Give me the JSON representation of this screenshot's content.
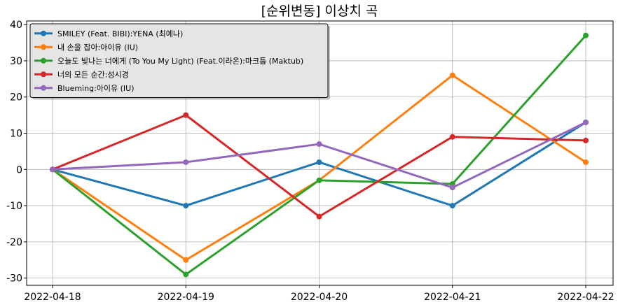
{
  "chart_data": {
    "type": "line",
    "title": "[순위변동] 이상치 곡",
    "xlabel": "",
    "ylabel": "",
    "x": [
      "2022-04-18",
      "2022-04-19",
      "2022-04-20",
      "2022-04-21",
      "2022-04-22"
    ],
    "ylim": [
      -32,
      41
    ],
    "yticks": [
      -30,
      -20,
      -10,
      0,
      10,
      20,
      30,
      40
    ],
    "grid": true,
    "legend_position": "top-left",
    "series": [
      {
        "name": "SMILEY (Feat. BIBI):YENA (최예나)",
        "color": "#1f77b4",
        "values": [
          0,
          -10,
          2,
          -10,
          13
        ]
      },
      {
        "name": "내 손을 잡아:아이유 (IU)",
        "color": "#ff7f0e",
        "values": [
          0,
          -25,
          -3,
          26,
          2
        ]
      },
      {
        "name": "오늘도 빛나는 너에게 (To You My Light) (Feat.이라온):마크툽 (Maktub)",
        "color": "#2ca02c",
        "values": [
          0,
          -29,
          -3,
          -4,
          37
        ]
      },
      {
        "name": "너의 모든 순간:성시경",
        "color": "#d62728",
        "values": [
          0,
          15,
          -13,
          9,
          8
        ]
      },
      {
        "name": "Blueming:아이유 (IU)",
        "color": "#9467bd",
        "values": [
          0,
          2,
          7,
          -5,
          13
        ]
      }
    ]
  }
}
